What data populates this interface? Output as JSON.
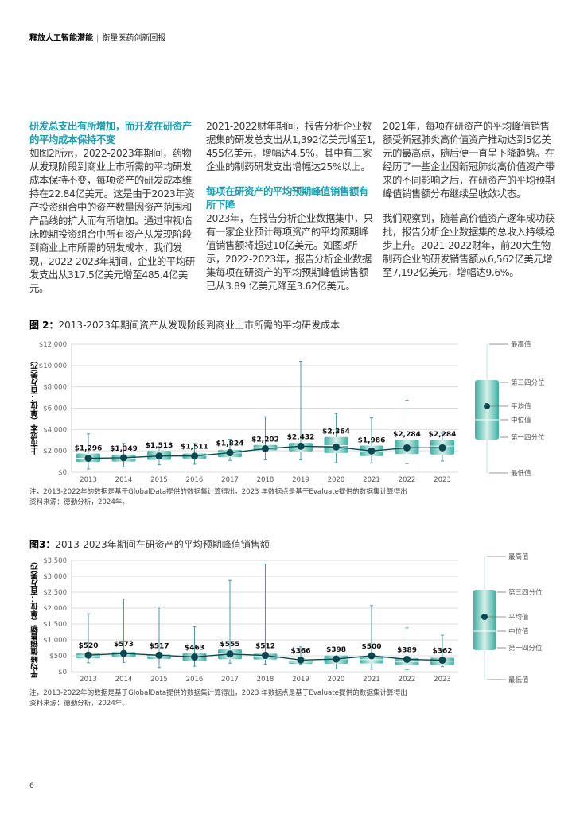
{
  "header": {
    "title_bold": "释放人工智能潜能",
    "separator": "|",
    "subtitle": "衡量医药创新回报"
  },
  "columns": [
    {
      "heading": "研发总支出有所增加，而开发在研资产的平均成本保持不变",
      "paragraphs": [
        "如图2所示，2022-2023年期间，药物从发现阶段到商业上市所需的平均研发成本保持不变，每项资产的研发成本维持在22.84亿美元。这是由于2023年资产投资组合中的资产数量因资产范围和产品线的扩大而有所增加。通过审视临床晚期投资组合中所有资产从发现阶段到商业上市所需的研发成本，我们发现，2022-2023年期间，企业的平均研发支出从317.5亿美元增至485.4亿美元。"
      ]
    },
    {
      "intro": "2021-2022财年期间，报告分析企业数据集的研发总支出从1,392亿美元增至1,455亿美元，增幅达4.5%，其中有三家企业的制药研发支出增幅达25%以上。",
      "heading": "每项在研资产的平均预期峰值销售额有所下降",
      "paragraphs": [
        "2023年，在报告分析企业数据集中，只有一家企业预计每项资产的平均预期峰值销售额将超过10亿美元。如图3所示，2022-2023年，报告分析企业数据集每项在研资产的平均预期峰值销售额已从3.89 亿美元降至3.62亿美元。"
      ]
    },
    {
      "paragraphs": [
        "2021年，每项在研资产的平均峰值销售额受新冠肺炎高价值资产推动达到5亿美元的最高点，随后便一直呈下降趋势。在经历了一些企业因新冠肺炎高价值资产带来的不同影响之后，在研资产的平均预期峰值销售额分布继续呈收敛状态。",
        "我们观察到，随着高价值资产逐年成功获批，报告分析企业数据集的总收入持续稳步上升。2021-2022财年，前20大生物制药企业的研发销售额从6,562亿美元增至7,192亿美元，增幅达9.6%。"
      ]
    }
  ],
  "colors": {
    "accent": "#1a9fb0",
    "box_edge": "#3db0a2",
    "box_center": "#d8f0ea",
    "mean_dot": "#0b4750",
    "whisker": "#4a9ea8"
  },
  "legend": {
    "max": "最高值",
    "q3": "第三四分位",
    "mean": "平均值",
    "median": "中位值",
    "q1": "第一四分位",
    "min": "最低值"
  },
  "chart_data": [
    {
      "type": "box",
      "title_prefix": "图 2：",
      "title": "2013-2023年期间资产从发现阶段到商业上市所需的平均研发成本",
      "ylabel": "上市成本（单位：百万美元）",
      "ylim": [
        0,
        12000
      ],
      "yticks": [
        "$0",
        "$2,000",
        "$4,000",
        "$6,000",
        "$8,000",
        "$10,000",
        "$12,000"
      ],
      "ytick_values": [
        0,
        2000,
        4000,
        6000,
        8000,
        10000,
        12000
      ],
      "grid": true,
      "categories": [
        "2013",
        "2014",
        "2015",
        "2016",
        "2017",
        "2018",
        "2019",
        "2020",
        "2021",
        "2022",
        "2023"
      ],
      "mean": [
        1296,
        1349,
        1513,
        1511,
        1824,
        2202,
        2432,
        2364,
        1986,
        2284,
        2284
      ],
      "mean_labels": [
        "$1,296",
        "$1,349",
        "$1,513",
        "$1,511",
        "$1,824",
        "$2,202",
        "$2,432",
        "$2,364",
        "$1,986",
        "$2,284",
        "$2,284"
      ],
      "max": [
        3600,
        2700,
        2350,
        2700,
        3100,
        5200,
        10400,
        5500,
        5100,
        6750,
        3650
      ],
      "q3": [
        1750,
        1650,
        2000,
        1750,
        2100,
        2550,
        2750,
        3300,
        2500,
        3050,
        3050
      ],
      "median": [
        1300,
        1300,
        1500,
        1550,
        1800,
        2300,
        2400,
        2500,
        2000,
        2300,
        2450
      ],
      "q1": [
        950,
        1000,
        1150,
        1250,
        1400,
        2050,
        1950,
        1800,
        1500,
        1700,
        1650
      ],
      "min": [
        300,
        500,
        700,
        750,
        1100,
        1150,
        1150,
        900,
        850,
        800,
        1050
      ],
      "note": "注，2013-2022年的数据是基于GlobalData提供的数据集计算得出，2023 年数据点是基于Evaluate提供的数据集计算得出",
      "source": "资料来源：德勤分析，2024年。"
    },
    {
      "type": "box",
      "title_prefix": "图3：",
      "title": "2013-2023年期间在研资产的平均预期峰值销售额",
      "ylabel": "平均峰值销售额（单位：百万美元）",
      "ylim": [
        0,
        3500
      ],
      "yticks": [
        "$0",
        "$500",
        "$1,000",
        "$1,500",
        "$2,000",
        "$2,500",
        "$3,000",
        "$3,500"
      ],
      "ytick_values": [
        0,
        500,
        1000,
        1500,
        2000,
        2500,
        3000,
        3500
      ],
      "grid": true,
      "categories": [
        "2013",
        "2014",
        "2015",
        "2016",
        "2017",
        "2018",
        "2019",
        "2020",
        "2021",
        "2022",
        "2023"
      ],
      "mean": [
        520,
        573,
        517,
        463,
        555,
        512,
        366,
        398,
        500,
        389,
        362
      ],
      "mean_labels": [
        "$520",
        "$573",
        "$517",
        "$463",
        "$555",
        "$512",
        "$366",
        "$398",
        "$500",
        "$389",
        "$362"
      ],
      "max": [
        1820,
        2290,
        2040,
        1410,
        2870,
        3390,
        780,
        500,
        2080,
        1380,
        1150
      ],
      "q3": [
        580,
        620,
        540,
        580,
        700,
        570,
        350,
        510,
        480,
        430,
        440
      ],
      "median": [
        500,
        550,
        480,
        460,
        560,
        480,
        300,
        400,
        380,
        320,
        330
      ],
      "q1": [
        420,
        460,
        400,
        330,
        390,
        380,
        250,
        250,
        260,
        210,
        210
      ],
      "min": [
        280,
        290,
        130,
        170,
        270,
        240,
        230,
        90,
        80,
        60,
        160
      ],
      "note": "注，2013-2022年的数据是基于GlobalData提供的数据集计算得出，2023 年数据点是基于Evaluate提供的数据集计算得出",
      "source": "资料来源：德勤分析，2024年。"
    }
  ],
  "page_number": "6"
}
